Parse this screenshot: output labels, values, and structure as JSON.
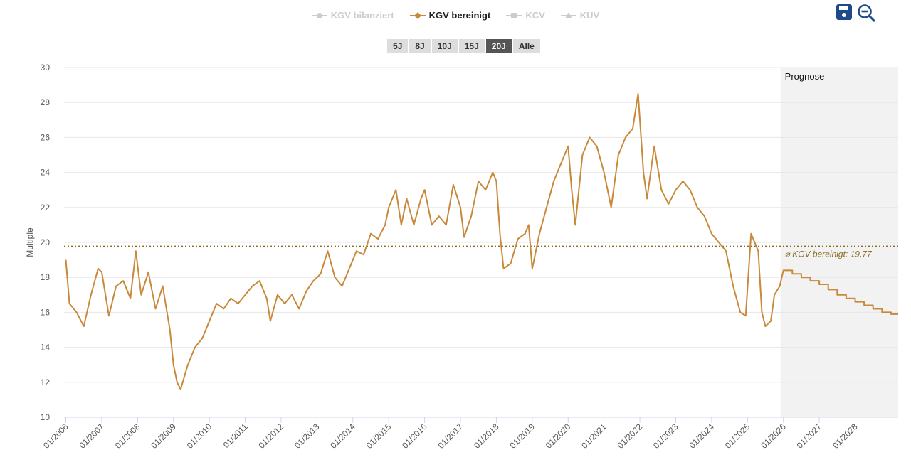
{
  "legend": [
    {
      "label": "KGV bilanziert",
      "active": false,
      "marker": "circle"
    },
    {
      "label": "KGV bereinigt",
      "active": true,
      "marker": "diamond"
    },
    {
      "label": "KCV",
      "active": false,
      "marker": "square"
    },
    {
      "label": "KUV",
      "active": false,
      "marker": "triangle"
    }
  ],
  "ranges": [
    {
      "label": "5J"
    },
    {
      "label": "8J"
    },
    {
      "label": "10J"
    },
    {
      "label": "15J"
    },
    {
      "label": "20J",
      "active": true
    },
    {
      "label": "Alle"
    }
  ],
  "icons": [
    "save-icon",
    "zoom-out-icon"
  ],
  "colors": {
    "series": "#c8893a",
    "avg": "#8a6a1f",
    "tool": "#1f4a8a",
    "forecast_bg": "#f2f2f2"
  },
  "chart_data": {
    "type": "line",
    "ylabel": "Multiple",
    "ylim": [
      10,
      30
    ],
    "yticks": [
      10,
      12,
      14,
      16,
      18,
      20,
      22,
      24,
      26,
      28,
      30
    ],
    "xlim": [
      2005.95,
      2029.2
    ],
    "xticks": [
      "01/2006",
      "01/2007",
      "01/2008",
      "01/2009",
      "01/2010",
      "01/2011",
      "01/2012",
      "01/2013",
      "01/2014",
      "01/2015",
      "01/2016",
      "01/2017",
      "01/2018",
      "01/2019",
      "01/2020",
      "01/2021",
      "01/2022",
      "01/2023",
      "01/2024",
      "01/2025",
      "01/2026",
      "01/2027",
      "01/2028"
    ],
    "forecast_label": "Prognose",
    "forecast_start": 2025.92,
    "average": {
      "value": 19.77,
      "label": "⌀ KGV bereinigt: 19,77"
    },
    "series": [
      {
        "name": "KGV bereinigt",
        "x": [
          2006.0,
          2006.1,
          2006.3,
          2006.5,
          2006.7,
          2006.9,
          2007.0,
          2007.2,
          2007.4,
          2007.6,
          2007.8,
          2007.95,
          2008.1,
          2008.3,
          2008.5,
          2008.7,
          2008.9,
          2009.0,
          2009.1,
          2009.2,
          2009.4,
          2009.6,
          2009.8,
          2010.0,
          2010.2,
          2010.4,
          2010.6,
          2010.8,
          2011.0,
          2011.2,
          2011.4,
          2011.6,
          2011.7,
          2011.9,
          2012.1,
          2012.3,
          2012.5,
          2012.7,
          2012.9,
          2013.1,
          2013.3,
          2013.5,
          2013.7,
          2013.9,
          2014.1,
          2014.3,
          2014.5,
          2014.7,
          2014.9,
          2015.0,
          2015.2,
          2015.35,
          2015.5,
          2015.7,
          2015.9,
          2016.0,
          2016.2,
          2016.4,
          2016.6,
          2016.8,
          2017.0,
          2017.1,
          2017.3,
          2017.5,
          2017.7,
          2017.9,
          2018.0,
          2018.1,
          2018.2,
          2018.4,
          2018.6,
          2018.8,
          2018.9,
          2019.0,
          2019.2,
          2019.4,
          2019.6,
          2019.8,
          2020.0,
          2020.1,
          2020.2,
          2020.4,
          2020.6,
          2020.8,
          2021.0,
          2021.2,
          2021.4,
          2021.6,
          2021.8,
          2021.95,
          2022.0,
          2022.1,
          2022.2,
          2022.4,
          2022.6,
          2022.8,
          2023.0,
          2023.2,
          2023.4,
          2023.6,
          2023.8,
          2024.0,
          2024.2,
          2024.4,
          2024.6,
          2024.8,
          2024.95,
          2025.1,
          2025.3,
          2025.4,
          2025.5,
          2025.65,
          2025.75,
          2025.9
        ],
        "y": [
          19,
          16.5,
          16,
          15.2,
          17,
          18.5,
          18.3,
          15.8,
          17.5,
          17.8,
          16.8,
          19.5,
          17,
          18.3,
          16.2,
          17.5,
          15,
          13,
          12,
          11.6,
          13,
          14,
          14.5,
          15.5,
          16.5,
          16.2,
          16.8,
          16.5,
          17,
          17.5,
          17.8,
          16.8,
          15.5,
          17,
          16.5,
          17,
          16.2,
          17.2,
          17.8,
          18.2,
          19.5,
          18,
          17.5,
          18.5,
          19.5,
          19.3,
          20.5,
          20.2,
          21,
          22,
          23,
          21,
          22.5,
          21,
          22.5,
          23,
          21,
          21.5,
          21,
          23.3,
          22,
          20.3,
          21.5,
          23.5,
          23,
          24,
          23.5,
          20.5,
          18.5,
          18.8,
          20.2,
          20.5,
          21,
          18.5,
          20.5,
          22,
          23.5,
          24.5,
          25.5,
          23,
          21,
          25,
          26,
          25.5,
          24,
          22,
          25,
          26,
          26.5,
          28.5,
          27,
          24,
          22.5,
          25.5,
          23,
          22.2,
          23,
          23.5,
          23,
          22,
          21.5,
          20.5,
          20,
          19.5,
          17.5,
          16,
          15.8,
          20.5,
          19.5,
          16,
          15.2,
          15.5,
          17,
          17.5
        ]
      },
      {
        "name": "Prognose KGV bereinigt",
        "step": true,
        "x": [
          2026.0,
          2026.25,
          2026.5,
          2026.75,
          2027.0,
          2027.25,
          2027.5,
          2027.75,
          2028.0,
          2028.25,
          2028.5,
          2028.75,
          2029.0,
          2029.2
        ],
        "y": [
          18.4,
          18.2,
          18.0,
          17.8,
          17.6,
          17.3,
          17.0,
          16.8,
          16.6,
          16.4,
          16.2,
          16.0,
          15.9,
          15.9
        ]
      }
    ]
  }
}
